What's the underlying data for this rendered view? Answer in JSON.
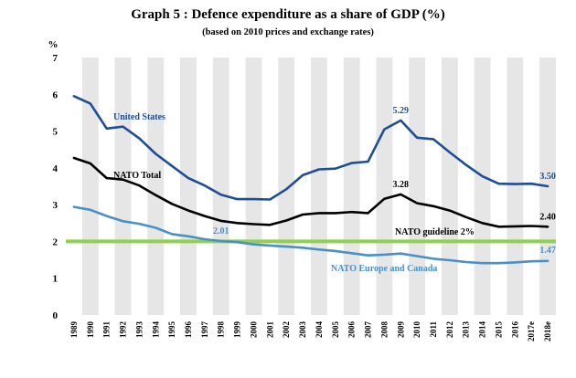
{
  "header": {
    "title": "Graph 5 : Defence expenditure as a share of GDP (%)",
    "subtitle": "(based on 2010 prices and exchange rates)"
  },
  "chart_data": {
    "type": "line",
    "y_unit": "%",
    "ylim": [
      0,
      7
    ],
    "yticks": [
      0,
      1,
      2,
      3,
      4,
      5,
      6,
      7
    ],
    "grid": "vertical bands",
    "categories": [
      "1989",
      "1990",
      "1991",
      "1992",
      "1993",
      "1994",
      "1995",
      "1996",
      "1997",
      "1998",
      "1999",
      "2000",
      "2001",
      "2002",
      "2003",
      "2004",
      "2005",
      "2006",
      "2007",
      "2008",
      "2009",
      "2010",
      "2011",
      "2012",
      "2013",
      "2014",
      "2015",
      "2016",
      "2017e",
      "2018e"
    ],
    "series": [
      {
        "name": "United States",
        "color": "#1f4e94",
        "values": [
          5.95,
          5.75,
          5.07,
          5.12,
          4.8,
          4.38,
          4.05,
          3.72,
          3.52,
          3.27,
          3.15,
          3.15,
          3.14,
          3.42,
          3.8,
          3.96,
          3.98,
          4.13,
          4.17,
          5.05,
          5.29,
          4.82,
          4.78,
          4.42,
          4.08,
          3.77,
          3.57,
          3.56,
          3.57,
          3.5
        ]
      },
      {
        "name": "NATO Total",
        "color": "#000000",
        "values": [
          4.27,
          4.12,
          3.72,
          3.68,
          3.52,
          3.26,
          3.02,
          2.84,
          2.69,
          2.56,
          2.5,
          2.47,
          2.45,
          2.57,
          2.73,
          2.77,
          2.77,
          2.8,
          2.77,
          3.16,
          3.28,
          3.04,
          2.96,
          2.84,
          2.66,
          2.5,
          2.4,
          2.41,
          2.42,
          2.4
        ]
      },
      {
        "name": "NATO Europe and Canada",
        "color": "#4a90c8",
        "values": [
          2.94,
          2.86,
          2.69,
          2.55,
          2.48,
          2.37,
          2.2,
          2.14,
          2.06,
          2.01,
          1.98,
          1.92,
          1.89,
          1.86,
          1.83,
          1.78,
          1.74,
          1.68,
          1.62,
          1.64,
          1.67,
          1.6,
          1.53,
          1.49,
          1.44,
          1.41,
          1.41,
          1.43,
          1.46,
          1.47
        ]
      }
    ],
    "reference_line": {
      "name": "NATO guideline 2%",
      "value": 2,
      "color": "#8fd14f"
    },
    "annotations": [
      {
        "series": 0,
        "index": 20,
        "text": "5.29"
      },
      {
        "series": 0,
        "index": 29,
        "text": "3.50"
      },
      {
        "series": 1,
        "index": 20,
        "text": "3.28"
      },
      {
        "series": 1,
        "index": 29,
        "text": "2.40"
      },
      {
        "series": 2,
        "index": 9,
        "text": "2.01"
      },
      {
        "series": 2,
        "index": 29,
        "text": "1.47"
      }
    ]
  }
}
